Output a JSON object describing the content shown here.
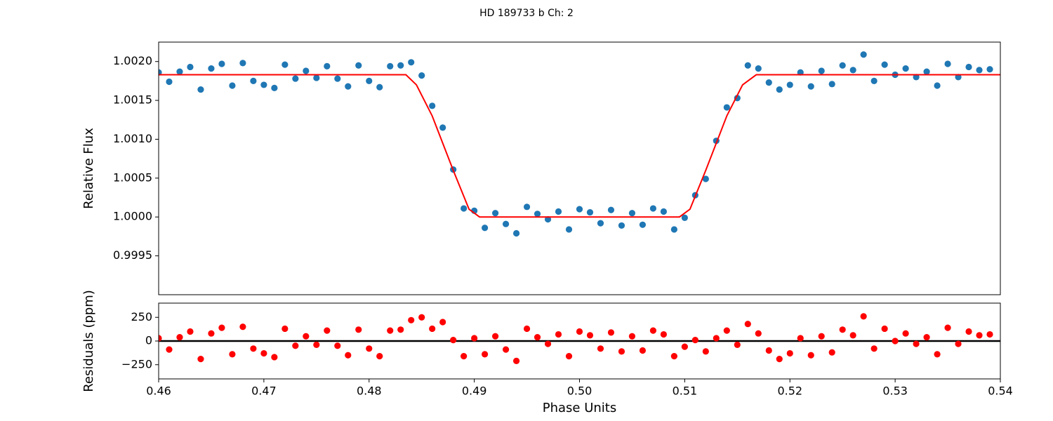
{
  "chart_data": [
    {
      "type": "scatter",
      "title": "HD 189733 b  Ch:  2",
      "ylabel": "Relative Flux",
      "xlim": [
        0.46,
        0.54
      ],
      "ylim": [
        0.999,
        1.00225
      ],
      "yticks": [
        {
          "value": 0.9995,
          "label": "0.9995"
        },
        {
          "value": 1,
          "label": "1.0000"
        },
        {
          "value": 1.0005,
          "label": "1.0005"
        },
        {
          "value": 1.001,
          "label": "1.0010"
        },
        {
          "value": 1.0015,
          "label": "1.0015"
        },
        {
          "value": 1.002,
          "label": "1.0020"
        }
      ],
      "x": [
        0.46,
        0.461,
        0.462,
        0.463,
        0.464,
        0.465,
        0.466,
        0.467,
        0.468,
        0.469,
        0.47,
        0.471,
        0.472,
        0.473,
        0.474,
        0.475,
        0.476,
        0.477,
        0.478,
        0.479,
        0.48,
        0.481,
        0.482,
        0.483,
        0.484,
        0.485,
        0.486,
        0.487,
        0.488,
        0.489,
        0.49,
        0.491,
        0.492,
        0.493,
        0.494,
        0.495,
        0.496,
        0.497,
        0.498,
        0.499,
        0.5,
        0.501,
        0.502,
        0.503,
        0.504,
        0.505,
        0.506,
        0.507,
        0.508,
        0.509,
        0.51,
        0.511,
        0.512,
        0.513,
        0.514,
        0.515,
        0.516,
        0.517,
        0.518,
        0.519,
        0.52,
        0.521,
        0.522,
        0.523,
        0.524,
        0.525,
        0.526,
        0.527,
        0.528,
        0.529,
        0.53,
        0.531,
        0.532,
        0.533,
        0.534,
        0.535,
        0.536,
        0.537,
        0.538,
        0.539
      ],
      "series": [
        {
          "color": "#1f77b4",
          "values": [
            1.00186,
            1.00174,
            1.00187,
            1.00193,
            1.00164,
            1.00191,
            1.00197,
            1.00169,
            1.00198,
            1.00175,
            1.0017,
            1.00166,
            1.00196,
            1.00178,
            1.00188,
            1.00179,
            1.00194,
            1.00178,
            1.00168,
            1.00195,
            1.00175,
            1.00167,
            1.00194,
            1.00195,
            1.00199,
            1.00182,
            1.00143,
            1.00115,
            1.00061,
            1.00011,
            1.00008,
            0.99986,
            1.00005,
            0.99991,
            0.99979,
            1.00013,
            1.00004,
            0.99997,
            1.00007,
            0.99984,
            1.0001,
            1.00006,
            0.99992,
            1.00009,
            0.99989,
            1.00005,
            0.9999,
            1.00011,
            1.00007,
            0.99984,
            0.99999,
            1.00028,
            1.00049,
            1.00098,
            1.00141,
            1.00153,
            1.00195,
            1.00191,
            1.00173,
            1.00164,
            1.0017,
            1.00186,
            1.00168,
            1.00188,
            1.00171,
            1.00195,
            1.00189,
            1.00209,
            1.00175,
            1.00196,
            1.00183,
            1.00191,
            1.0018,
            1.00187,
            1.00169,
            1.00197,
            1.0018,
            1.00193,
            1.00189,
            1.0019
          ]
        }
      ],
      "model": {
        "color": "#ff0000",
        "x": [
          0.46,
          0.4835,
          0.4845,
          0.486,
          0.488,
          0.4895,
          0.4905,
          0.5095,
          0.5105,
          0.512,
          0.514,
          0.5155,
          0.5168,
          0.54
        ],
        "values": [
          1.00183,
          1.00183,
          1.0017,
          1.0013,
          1.0006,
          1.0001,
          1.0,
          1.0,
          1.0001,
          1.0006,
          1.0013,
          1.0017,
          1.00183,
          1.00183
        ]
      }
    },
    {
      "type": "scatter",
      "xlabel": "Phase Units",
      "ylabel": "Residuals (ppm)",
      "xlim": [
        0.46,
        0.54
      ],
      "ylim": [
        -400,
        400
      ],
      "xticks": [
        0.46,
        0.47,
        0.48,
        0.49,
        {
          "value": 0.5,
          "label": "0.50"
        },
        0.51,
        0.52,
        0.53,
        0.54
      ],
      "yticks": [
        {
          "value": -250,
          "label": "−250"
        },
        0,
        250
      ],
      "hline": {
        "value": 0,
        "color": "#000000"
      },
      "x": [
        0.46,
        0.461,
        0.462,
        0.463,
        0.464,
        0.465,
        0.466,
        0.467,
        0.468,
        0.469,
        0.47,
        0.471,
        0.472,
        0.473,
        0.474,
        0.475,
        0.476,
        0.477,
        0.478,
        0.479,
        0.48,
        0.481,
        0.482,
        0.483,
        0.484,
        0.485,
        0.486,
        0.487,
        0.488,
        0.489,
        0.49,
        0.491,
        0.492,
        0.493,
        0.494,
        0.495,
        0.496,
        0.497,
        0.498,
        0.499,
        0.5,
        0.501,
        0.502,
        0.503,
        0.504,
        0.505,
        0.506,
        0.507,
        0.508,
        0.509,
        0.51,
        0.511,
        0.512,
        0.513,
        0.514,
        0.515,
        0.516,
        0.517,
        0.518,
        0.519,
        0.52,
        0.521,
        0.522,
        0.523,
        0.524,
        0.525,
        0.526,
        0.527,
        0.528,
        0.529,
        0.53,
        0.531,
        0.532,
        0.533,
        0.534,
        0.535,
        0.536,
        0.537,
        0.538,
        0.539
      ],
      "series": [
        {
          "color": "#ff0000",
          "values": [
            30,
            -90,
            40,
            100,
            -190,
            80,
            140,
            -140,
            150,
            -80,
            -130,
            -170,
            130,
            -50,
            50,
            -40,
            110,
            -50,
            -150,
            120,
            -80,
            -160,
            110,
            120,
            220,
            250,
            130,
            200,
            10,
            -160,
            30,
            -140,
            50,
            -90,
            -210,
            130,
            40,
            -30,
            70,
            -160,
            100,
            60,
            -80,
            90,
            -110,
            50,
            -100,
            110,
            70,
            -160,
            -60,
            10,
            -110,
            30,
            110,
            -40,
            180,
            80,
            -100,
            -190,
            -130,
            30,
            -150,
            50,
            -120,
            120,
            60,
            260,
            -80,
            130,
            0,
            80,
            -30,
            40,
            -140,
            140,
            -30,
            100,
            60,
            70
          ]
        }
      ]
    }
  ]
}
